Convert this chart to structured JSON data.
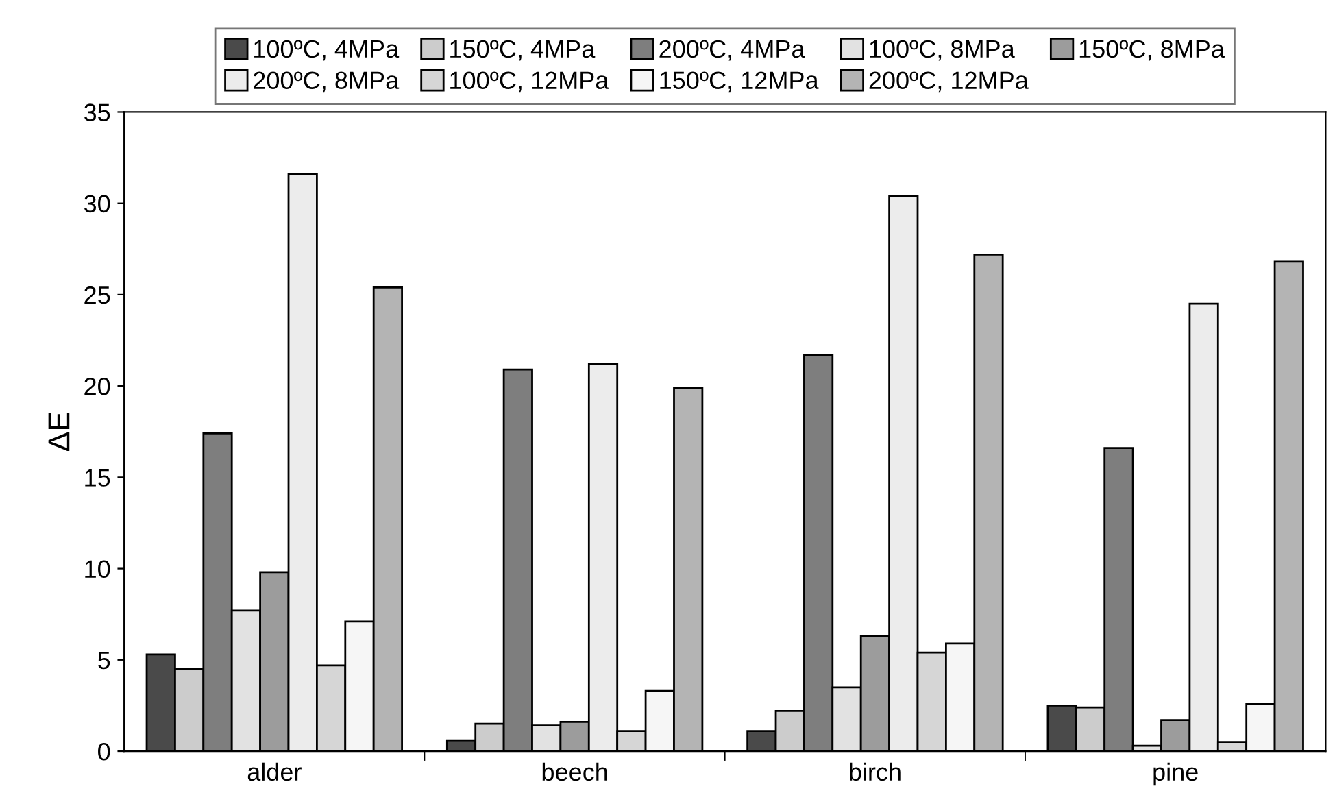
{
  "chart_data": {
    "type": "bar",
    "ylabel": "ΔE",
    "categories": [
      "alder",
      "beech",
      "birch",
      "pine"
    ],
    "series": [
      {
        "name": "100ºC, 4MPa",
        "color": "#4a4a4a",
        "values": [
          5.3,
          0.6,
          1.1,
          2.5
        ]
      },
      {
        "name": "150ºC, 4MPa",
        "color": "#cccccc",
        "values": [
          4.5,
          1.5,
          2.2,
          2.4
        ]
      },
      {
        "name": "200ºC, 4MPa",
        "color": "#7e7e7e",
        "values": [
          17.4,
          20.9,
          21.7,
          16.6
        ]
      },
      {
        "name": "100ºC, 8MPa",
        "color": "#e2e2e2",
        "values": [
          7.7,
          1.4,
          3.5,
          0.3
        ]
      },
      {
        "name": "150ºC, 8MPa",
        "color": "#9c9c9c",
        "values": [
          9.8,
          1.6,
          6.3,
          1.7
        ]
      },
      {
        "name": "200ºC, 8MPa",
        "color": "#ececec",
        "values": [
          31.6,
          21.2,
          30.4,
          24.5
        ]
      },
      {
        "name": "100ºC, 12MPa",
        "color": "#d6d6d6",
        "values": [
          4.7,
          1.1,
          5.4,
          0.5
        ]
      },
      {
        "name": "150ºC, 12MPa",
        "color": "#f6f6f6",
        "values": [
          7.1,
          3.3,
          5.9,
          2.6
        ]
      },
      {
        "name": "200ºC, 12MPa",
        "color": "#b4b4b4",
        "values": [
          25.4,
          19.9,
          27.2,
          26.8
        ]
      }
    ],
    "ylim": [
      0,
      35
    ],
    "yticks": [
      0,
      5,
      10,
      15,
      20,
      25,
      30,
      35
    ],
    "grid": false,
    "legend": "top"
  }
}
